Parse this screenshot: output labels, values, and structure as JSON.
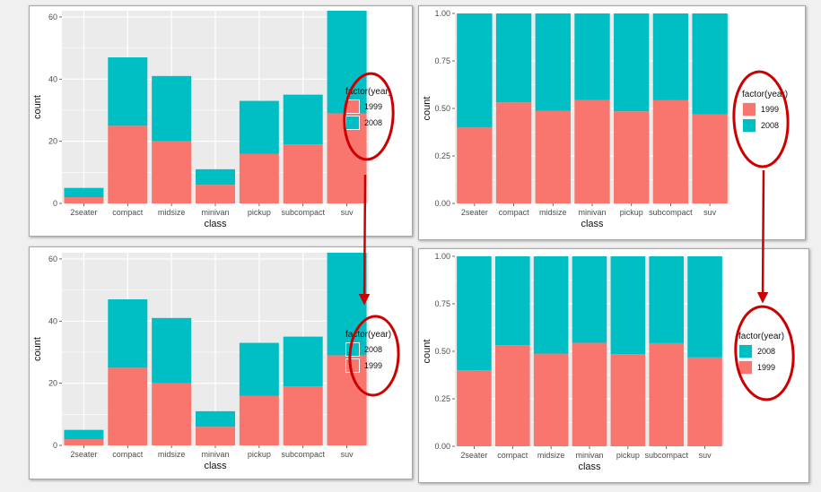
{
  "colors": {
    "c1999": "#f8766d",
    "c2008": "#00bfc4",
    "panel_bg": "#ebebeb",
    "gridline": "#ffffff",
    "annotation": "#cc0000"
  },
  "chart_data": [
    {
      "type": "bar",
      "stacked": true,
      "categories": [
        "2seater",
        "compact",
        "midsize",
        "minivan",
        "pickup",
        "subcompact",
        "suv"
      ],
      "series": [
        {
          "name": "1999",
          "values": [
            2,
            25,
            20,
            6,
            16,
            19,
            29
          ]
        },
        {
          "name": "2008",
          "values": [
            3,
            22,
            21,
            5,
            17,
            16,
            33
          ]
        }
      ],
      "stack_order": [
        "1999",
        "2008"
      ],
      "xlabel": "class",
      "ylabel": "count",
      "ylim": [
        0,
        62
      ],
      "yticks": [
        0,
        20,
        40,
        60
      ],
      "ytick_labels": [
        "0",
        "20",
        "40",
        "60"
      ],
      "legend": {
        "title": "factor(year)",
        "entries": [
          "1999",
          "2008"
        ],
        "placement": "right"
      },
      "grid": true
    },
    {
      "type": "bar",
      "stacked": true,
      "position": "fill",
      "categories": [
        "2seater",
        "compact",
        "midsize",
        "minivan",
        "pickup",
        "subcompact",
        "suv"
      ],
      "series": [
        {
          "name": "1999",
          "values": [
            0.4,
            0.532,
            0.488,
            0.545,
            0.485,
            0.543,
            0.468
          ]
        },
        {
          "name": "2008",
          "values": [
            0.6,
            0.468,
            0.512,
            0.455,
            0.515,
            0.457,
            0.532
          ]
        }
      ],
      "stack_order": [
        "1999",
        "2008"
      ],
      "xlabel": "class",
      "ylabel": "count",
      "ylim": [
        0,
        1
      ],
      "yticks": [
        0,
        0.25,
        0.5,
        0.75,
        1
      ],
      "ytick_labels": [
        "0.00",
        "0.25",
        "0.50",
        "0.75",
        "1.00"
      ],
      "legend": {
        "title": "factor(year)",
        "entries": [
          "1999",
          "2008"
        ],
        "placement": "right"
      },
      "grid": true
    },
    {
      "type": "bar",
      "stacked": true,
      "categories": [
        "2seater",
        "compact",
        "midsize",
        "minivan",
        "pickup",
        "subcompact",
        "suv"
      ],
      "series": [
        {
          "name": "1999",
          "values": [
            2,
            25,
            20,
            6,
            16,
            19,
            29
          ]
        },
        {
          "name": "2008",
          "values": [
            3,
            22,
            21,
            5,
            17,
            16,
            33
          ]
        }
      ],
      "stack_order": [
        "1999",
        "2008"
      ],
      "xlabel": "class",
      "ylabel": "count",
      "ylim": [
        0,
        62
      ],
      "yticks": [
        0,
        20,
        40,
        60
      ],
      "ytick_labels": [
        "0",
        "20",
        "40",
        "60"
      ],
      "legend": {
        "title": "factor(year)",
        "entries": [
          "2008",
          "1999"
        ],
        "placement": "right"
      },
      "grid": true
    },
    {
      "type": "bar",
      "stacked": true,
      "position": "fill",
      "categories": [
        "2seater",
        "compact",
        "midsize",
        "minivan",
        "pickup",
        "subcompact",
        "suv"
      ],
      "series": [
        {
          "name": "1999",
          "values": [
            0.4,
            0.532,
            0.488,
            0.545,
            0.485,
            0.543,
            0.468
          ]
        },
        {
          "name": "2008",
          "values": [
            0.6,
            0.468,
            0.512,
            0.455,
            0.515,
            0.457,
            0.532
          ]
        }
      ],
      "stack_order": [
        "1999",
        "2008"
      ],
      "xlabel": "class",
      "ylabel": "count",
      "ylim": [
        0,
        1
      ],
      "yticks": [
        0,
        0.25,
        0.5,
        0.75,
        1
      ],
      "ytick_labels": [
        "0.00",
        "0.25",
        "0.50",
        "0.75",
        "1.00"
      ],
      "legend": {
        "title": "factor(year)",
        "entries": [
          "2008",
          "1999"
        ],
        "placement": "right"
      },
      "grid": true
    }
  ]
}
